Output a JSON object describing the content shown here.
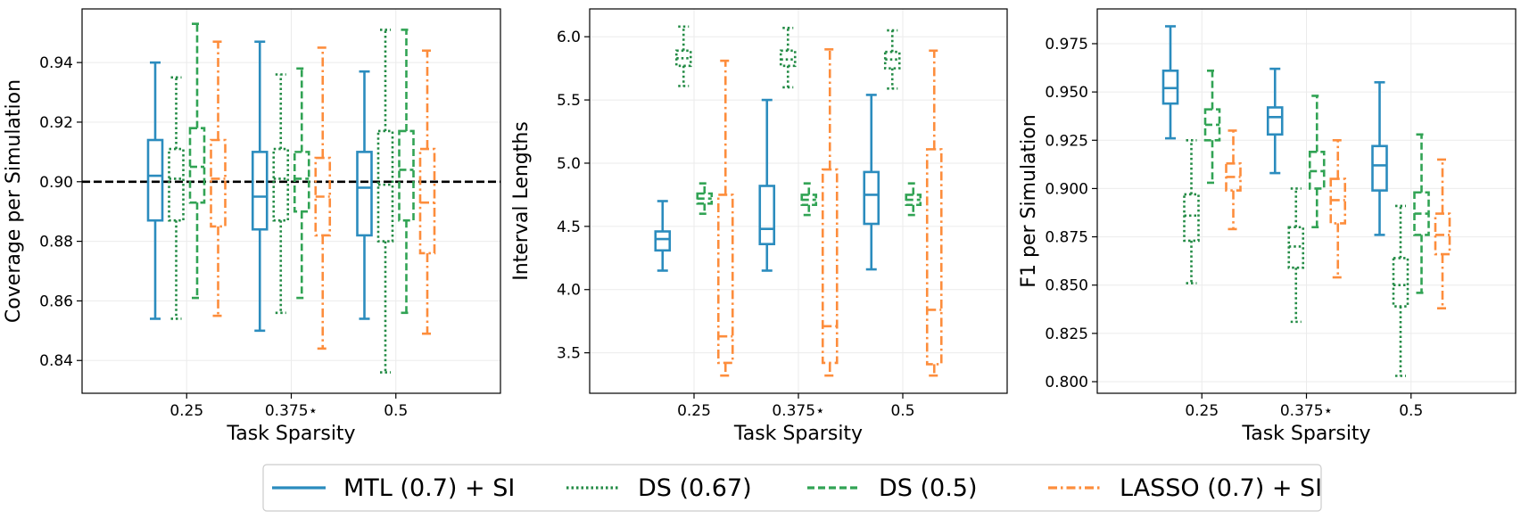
{
  "colors": {
    "mtl": "#2b8cbe",
    "ds067": "#238b45",
    "ds05": "#31a354",
    "lasso": "#fd8d3c",
    "refline": "#000000",
    "grid": "#ebebeb"
  },
  "legend": {
    "items": [
      {
        "label": "MTL (0.7) + SI",
        "style": "solid",
        "color_key": "mtl"
      },
      {
        "label": "DS (0.67)",
        "style": "dotted",
        "color_key": "ds067"
      },
      {
        "label": "DS (0.5)",
        "style": "dashed",
        "color_key": "ds05"
      },
      {
        "label": "LASSO (0.7) + SI",
        "style": "dashdot",
        "color_key": "lasso"
      }
    ]
  },
  "chart_data": [
    {
      "type": "boxplot",
      "ylabel": "Coverage per Simulation",
      "xlabel": "Task Sparsity",
      "categories": [
        "0.25",
        "0.375⋆",
        "0.5"
      ],
      "ylim": [
        0.829,
        0.958
      ],
      "yticks": [
        0.84,
        0.86,
        0.88,
        0.9,
        0.92,
        0.94
      ],
      "ytick_labels": [
        "0.84",
        "0.86",
        "0.88",
        "0.90",
        "0.92",
        "0.94"
      ],
      "reference_line": 0.9,
      "series": [
        {
          "name": "MTL (0.7) + SI",
          "boxes": [
            {
              "whislo": 0.854,
              "q1": 0.887,
              "med": 0.902,
              "q3": 0.914,
              "whishi": 0.94
            },
            {
              "whislo": 0.85,
              "q1": 0.884,
              "med": 0.895,
              "q3": 0.91,
              "whishi": 0.947
            },
            {
              "whislo": 0.854,
              "q1": 0.882,
              "med": 0.898,
              "q3": 0.91,
              "whishi": 0.937
            }
          ]
        },
        {
          "name": "DS (0.67)",
          "boxes": [
            {
              "whislo": 0.854,
              "q1": 0.887,
              "med": 0.901,
              "q3": 0.911,
              "whishi": 0.935
            },
            {
              "whislo": 0.856,
              "q1": 0.887,
              "med": 0.901,
              "q3": 0.911,
              "whishi": 0.936
            },
            {
              "whislo": 0.836,
              "q1": 0.88,
              "med": 0.899,
              "q3": 0.917,
              "whishi": 0.951
            }
          ]
        },
        {
          "name": "DS (0.5)",
          "boxes": [
            {
              "whislo": 0.861,
              "q1": 0.893,
              "med": 0.905,
              "q3": 0.918,
              "whishi": 0.953
            },
            {
              "whislo": 0.861,
              "q1": 0.89,
              "med": 0.901,
              "q3": 0.91,
              "whishi": 0.938
            },
            {
              "whislo": 0.856,
              "q1": 0.887,
              "med": 0.904,
              "q3": 0.917,
              "whishi": 0.951
            }
          ]
        },
        {
          "name": "LASSO (0.7) + SI",
          "boxes": [
            {
              "whislo": 0.855,
              "q1": 0.885,
              "med": 0.901,
              "q3": 0.914,
              "whishi": 0.947
            },
            {
              "whislo": 0.844,
              "q1": 0.882,
              "med": 0.895,
              "q3": 0.908,
              "whishi": 0.945
            },
            {
              "whislo": 0.849,
              "q1": 0.876,
              "med": 0.893,
              "q3": 0.911,
              "whishi": 0.944
            }
          ]
        }
      ]
    },
    {
      "type": "boxplot",
      "ylabel": "Interval Lengths",
      "xlabel": "Task Sparsity",
      "categories": [
        "0.25",
        "0.375⋆",
        "0.5"
      ],
      "ylim": [
        3.18,
        6.22
      ],
      "yticks": [
        3.5,
        4.0,
        4.5,
        5.0,
        5.5,
        6.0
      ],
      "ytick_labels": [
        "3.5",
        "4.0",
        "4.5",
        "5.0",
        "5.5",
        "6.0"
      ],
      "series": [
        {
          "name": "MTL (0.7) + SI",
          "boxes": [
            {
              "whislo": 4.15,
              "q1": 4.31,
              "med": 4.4,
              "q3": 4.46,
              "whishi": 4.7
            },
            {
              "whislo": 4.15,
              "q1": 4.36,
              "med": 4.48,
              "q3": 4.82,
              "whishi": 5.5
            },
            {
              "whislo": 4.16,
              "q1": 4.52,
              "med": 4.75,
              "q3": 4.93,
              "whishi": 5.54
            }
          ]
        },
        {
          "name": "DS (0.67)",
          "boxes": [
            {
              "whislo": 5.61,
              "q1": 5.77,
              "med": 5.83,
              "q3": 5.89,
              "whishi": 6.08
            },
            {
              "whislo": 5.6,
              "q1": 5.77,
              "med": 5.82,
              "q3": 5.89,
              "whishi": 6.07
            },
            {
              "whislo": 5.59,
              "q1": 5.75,
              "med": 5.82,
              "q3": 5.88,
              "whishi": 6.05
            }
          ]
        },
        {
          "name": "DS (0.5)",
          "boxes": [
            {
              "whislo": 4.6,
              "q1": 4.68,
              "med": 4.72,
              "q3": 4.76,
              "whishi": 4.84
            },
            {
              "whislo": 4.59,
              "q1": 4.67,
              "med": 4.71,
              "q3": 4.75,
              "whishi": 4.84
            },
            {
              "whislo": 4.59,
              "q1": 4.67,
              "med": 4.71,
              "q3": 4.75,
              "whishi": 4.84
            }
          ]
        },
        {
          "name": "LASSO (0.7) + SI",
          "boxes": [
            {
              "whislo": 3.32,
              "q1": 3.42,
              "med": 3.63,
              "q3": 4.75,
              "whishi": 5.81
            },
            {
              "whislo": 3.32,
              "q1": 3.42,
              "med": 3.71,
              "q3": 4.95,
              "whishi": 5.9
            },
            {
              "whislo": 3.32,
              "q1": 3.41,
              "med": 3.84,
              "q3": 5.11,
              "whishi": 5.89
            }
          ]
        }
      ]
    },
    {
      "type": "boxplot",
      "ylabel": "F1 per Simulation",
      "xlabel": "Task Sparsity",
      "categories": [
        "0.25",
        "0.375⋆",
        "0.5"
      ],
      "ylim": [
        0.794,
        0.993
      ],
      "yticks": [
        0.8,
        0.825,
        0.85,
        0.875,
        0.9,
        0.925,
        0.95,
        0.975
      ],
      "ytick_labels": [
        "0.800",
        "0.825",
        "0.850",
        "0.875",
        "0.900",
        "0.925",
        "0.950",
        "0.975"
      ],
      "series": [
        {
          "name": "MTL (0.7) + SI",
          "boxes": [
            {
              "whislo": 0.926,
              "q1": 0.944,
              "med": 0.952,
              "q3": 0.961,
              "whishi": 0.984
            },
            {
              "whislo": 0.908,
              "q1": 0.928,
              "med": 0.937,
              "q3": 0.942,
              "whishi": 0.962
            },
            {
              "whislo": 0.876,
              "q1": 0.899,
              "med": 0.912,
              "q3": 0.922,
              "whishi": 0.955
            }
          ]
        },
        {
          "name": "DS (0.67)",
          "boxes": [
            {
              "whislo": 0.851,
              "q1": 0.873,
              "med": 0.886,
              "q3": 0.897,
              "whishi": 0.925
            },
            {
              "whislo": 0.831,
              "q1": 0.859,
              "med": 0.87,
              "q3": 0.88,
              "whishi": 0.9
            },
            {
              "whislo": 0.803,
              "q1": 0.839,
              "med": 0.85,
              "q3": 0.864,
              "whishi": 0.891
            }
          ]
        },
        {
          "name": "DS (0.5)",
          "boxes": [
            {
              "whislo": 0.903,
              "q1": 0.925,
              "med": 0.933,
              "q3": 0.941,
              "whishi": 0.961
            },
            {
              "whislo": 0.88,
              "q1": 0.9,
              "med": 0.909,
              "q3": 0.919,
              "whishi": 0.948
            },
            {
              "whislo": 0.846,
              "q1": 0.876,
              "med": 0.887,
              "q3": 0.898,
              "whishi": 0.928
            }
          ]
        },
        {
          "name": "LASSO (0.7) + SI",
          "boxes": [
            {
              "whislo": 0.879,
              "q1": 0.899,
              "med": 0.906,
              "q3": 0.913,
              "whishi": 0.93
            },
            {
              "whislo": 0.854,
              "q1": 0.882,
              "med": 0.894,
              "q3": 0.905,
              "whishi": 0.925
            },
            {
              "whislo": 0.838,
              "q1": 0.866,
              "med": 0.876,
              "q3": 0.887,
              "whishi": 0.915
            }
          ]
        }
      ]
    }
  ]
}
